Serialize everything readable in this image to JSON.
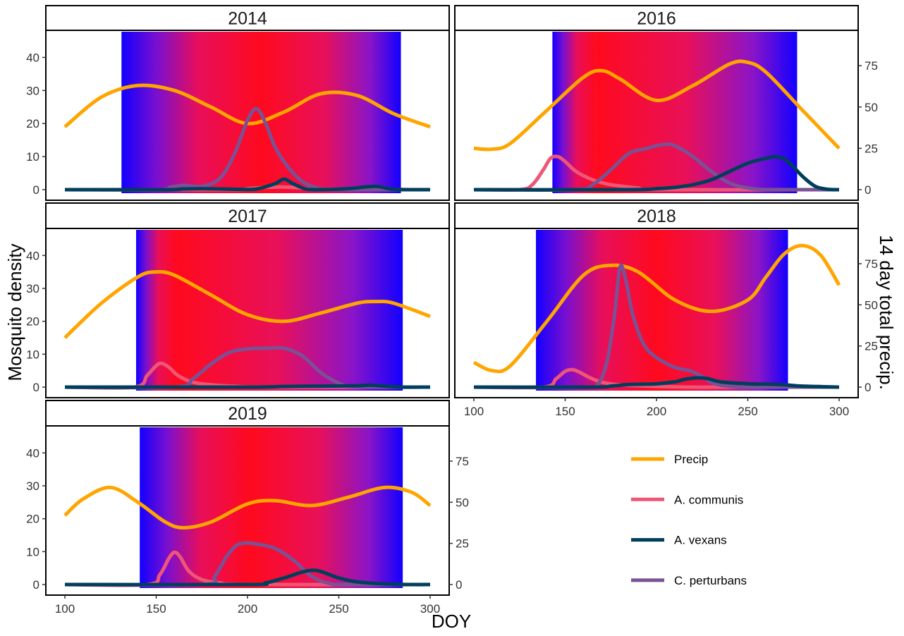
{
  "chart_data": {
    "type": "line",
    "title": "",
    "xlabel": "DOY",
    "ylabel": "Mosquito density",
    "y2label": "14 day total precip.",
    "xlim": [
      100,
      300
    ],
    "ylim": [
      0,
      45
    ],
    "y2lim": [
      0,
      90
    ],
    "xticks": [
      100,
      150,
      200,
      250,
      300
    ],
    "yticks": [
      0,
      10,
      20,
      30,
      40
    ],
    "y2ticks": [
      0,
      25,
      50,
      75
    ],
    "background": "vertical gradient band (blue edges to red centre) marking the season window",
    "legend": {
      "placement": "bottom-right",
      "entries": [
        {
          "name": "Precip",
          "color": "#FFA500"
        },
        {
          "name": "A. communis",
          "color": "#EF5675"
        },
        {
          "name": "A. vexans",
          "color": "#003F5C"
        },
        {
          "name": "C. perturbans",
          "color": "#7A5195"
        }
      ]
    },
    "panels": [
      {
        "label": "2014",
        "band": [
          131,
          284
        ],
        "band_hot": 0.5,
        "series": {
          "Precip": {
            "x": [
              100,
              120,
              140,
              160,
              180,
              200,
              220,
              240,
              260,
              280,
              300
            ],
            "y": [
              38,
              56,
              63,
              60,
              50,
              40,
              47,
              58,
              57,
              46,
              38
            ]
          },
          "A. communis": {
            "x": [
              100,
              190,
              200,
              210,
              220,
              230,
              240,
              300
            ],
            "y": [
              0,
              0,
              0.3,
              0.7,
              0.8,
              0.5,
              0.1,
              0
            ]
          },
          "A. vexans": {
            "x": [
              100,
              155,
              165,
              175,
              185,
              195,
              205,
              215,
              220,
              225,
              232,
              240,
              255,
              270,
              280,
              300
            ],
            "y": [
              0,
              0,
              0.2,
              0.3,
              0.2,
              0.1,
              0.2,
              1.8,
              3.2,
              1.8,
              0.2,
              0,
              0.3,
              1.0,
              0.1,
              0
            ]
          },
          "C. perturbans": {
            "x": [
              100,
              150,
              158,
              165,
              175,
              185,
              193,
              200,
              205,
              210,
              215,
              222,
              230,
              240,
              255,
              270,
              300
            ],
            "y": [
              0,
              0,
              0.8,
              1.3,
              1.0,
              3.5,
              11,
              21,
              24.5,
              20,
              13,
              7,
              2.5,
              0.3,
              0,
              0,
              0
            ]
          }
        }
      },
      {
        "label": "2016",
        "band": [
          143,
          277
        ],
        "band_hot": 0.18,
        "series": {
          "Precip": {
            "x": [
              100,
              110,
              120,
              140,
              160,
              170,
              180,
              200,
              220,
              240,
              250,
              260,
              280,
              300
            ],
            "y": [
              25,
              24.5,
              28,
              48,
              68,
              72,
              67,
              54,
              63,
              76,
              77,
              71,
              48,
              25
            ]
          },
          "A. communis": {
            "x": [
              100,
              125,
              132,
              138,
              142,
              146,
              150,
              156,
              165,
              175,
              190,
              200,
              300
            ],
            "y": [
              0,
              0,
              1.5,
              6,
              9.5,
              10,
              8.5,
              5.5,
              3,
              1.5,
              0.5,
              0,
              0
            ]
          },
          "A. vexans": {
            "x": [
              100,
              185,
              200,
              210,
              220,
              230,
              240,
              250,
              260,
              266,
              272,
              280,
              287,
              294,
              300
            ],
            "y": [
              0,
              0,
              0.3,
              0.7,
              1.5,
              3,
              5.5,
              8,
              9.5,
              10,
              8.5,
              4,
              1,
              0.1,
              0
            ]
          },
          "C. perturbans": {
            "x": [
              100,
              155,
              165,
              175,
              185,
              195,
              200,
              205,
              210,
              220,
              230,
              240,
              250,
              260,
              270,
              300
            ],
            "y": [
              0,
              0,
              1.5,
              6,
              11,
              12.5,
              13.3,
              13.7,
              13.3,
              10,
              5.5,
              2,
              0.5,
              0,
              0,
              0
            ]
          }
        }
      },
      {
        "label": "2017",
        "band": [
          139,
          285
        ],
        "band_hot": 0.15,
        "series": {
          "Precip": {
            "x": [
              100,
              120,
              140,
              150,
              160,
              180,
              200,
              220,
              240,
              260,
              270,
              280,
              300
            ],
            "y": [
              30,
              51,
              67,
              70,
              68,
              56,
              44,
              40,
              45,
              51,
              52,
              51,
              43
            ]
          },
          "A. communis": {
            "x": [
              100,
              138,
              145,
              150,
              153,
              157,
              162,
              170,
              180,
              195,
              210,
              300
            ],
            "y": [
              0,
              0,
              3.5,
              6.5,
              7.2,
              6,
              3.5,
              1.5,
              0.7,
              0.2,
              0,
              0
            ]
          },
          "A. vexans": {
            "x": [
              100,
              200,
              220,
              240,
              260,
              267,
              275,
              285,
              300
            ],
            "y": [
              0,
              0,
              0.2,
              0.3,
              0.4,
              0.6,
              0.3,
              0,
              0
            ]
          },
          "C. perturbans": {
            "x": [
              100,
              160,
              170,
              180,
              190,
              200,
              210,
              220,
              230,
              240,
              250,
              260,
              300
            ],
            "y": [
              0,
              0,
              2.5,
              7,
              10.5,
              11.6,
              11.8,
              11.8,
              9.5,
              4.5,
              1.2,
              0.1,
              0
            ]
          }
        }
      },
      {
        "label": "2018",
        "band": [
          134,
          272
        ],
        "band_hot": 0.48,
        "series": {
          "Precip": {
            "x": [
              100,
              110,
              120,
              140,
              160,
              175,
              190,
              210,
              230,
              250,
              260,
              270,
              280,
              290,
              300
            ],
            "y": [
              15,
              10,
              13,
              40,
              68,
              74,
              70,
              53,
              46,
              53,
              67,
              81,
              86,
              80,
              62
            ]
          },
          "A. communis": {
            "x": [
              100,
              138,
              145,
              150,
              154,
              158,
              163,
              170,
              180,
              200,
              220,
              240,
              300
            ],
            "y": [
              0,
              0,
              2.5,
              4.8,
              5.3,
              4.5,
              3,
              1.5,
              0.7,
              0.2,
              0,
              0,
              0
            ]
          },
          "A. vexans": {
            "x": [
              100,
              165,
              175,
              185,
              200,
              210,
              215,
              222,
              228,
              235,
              250,
              260,
              270,
              280,
              300
            ],
            "y": [
              0,
              0,
              0.3,
              0.8,
              1.0,
              1.6,
              2.3,
              2.8,
              2.6,
              1.6,
              1.0,
              0.9,
              0.7,
              0.3,
              0
            ]
          },
          "C. perturbans": {
            "x": [
              100,
              160,
              168,
              173,
              177,
              180,
              183,
              187,
              193,
              200,
              210,
              218,
              224,
              232,
              245,
              260,
              300
            ],
            "y": [
              0,
              0,
              1,
              8,
              22,
              36.5,
              33,
              22,
              13,
              9,
              6,
              5,
              3.5,
              1,
              0,
              0,
              0
            ]
          }
        }
      },
      {
        "label": "2019",
        "band": [
          141,
          285
        ],
        "band_hot": 0.42,
        "series": {
          "Precip": {
            "x": [
              100,
              110,
              125,
              140,
              155,
              165,
              180,
              200,
              215,
              235,
              255,
              275,
              290,
              300
            ],
            "y": [
              42,
              52,
              59,
              50,
              38,
              34.5,
              38,
              49,
              51,
              48,
              53,
              59,
              56,
              48
            ]
          },
          "A. communis": {
            "x": [
              100,
              145,
              152,
              157,
              160,
              163,
              168,
              175,
              185,
              200,
              300
            ],
            "y": [
              0,
              0,
              3,
              8,
              9.8,
              8.5,
              4,
              1.5,
              0.5,
              0,
              0
            ]
          },
          "A. vexans": {
            "x": [
              100,
              200,
              210,
              220,
              230,
              235,
              240,
              250,
              260,
              275,
              290,
              300
            ],
            "y": [
              0,
              0,
              0.5,
              2,
              3.8,
              4.3,
              4,
              2,
              0.8,
              0.2,
              0,
              0
            ]
          },
          "C. perturbans": {
            "x": [
              100,
              175,
              182,
              188,
              193,
              198,
              205,
              215,
              225,
              235,
              245,
              255,
              300
            ],
            "y": [
              0,
              0,
              2.5,
              8,
              11.5,
              12.6,
              12.3,
              11,
              7.5,
              2.5,
              0.3,
              0,
              0
            ]
          }
        }
      }
    ]
  }
}
